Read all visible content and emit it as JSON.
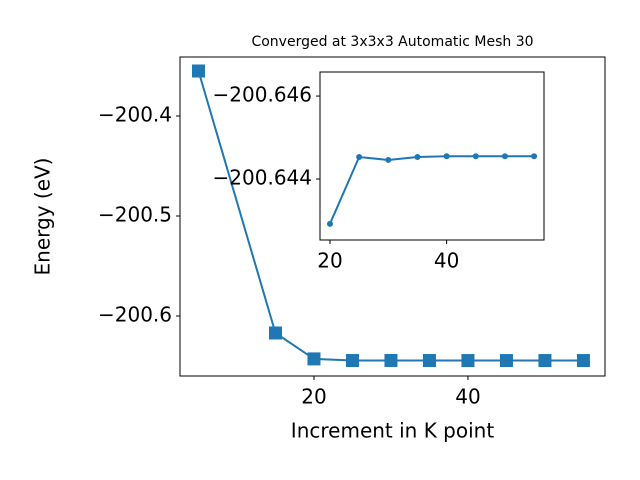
{
  "chart_data": [
    {
      "type": "line",
      "title": "Converged at 3x3x3 Automatic Mesh 30",
      "xlabel": "Increment in K point",
      "ylabel": "Energy (eV)",
      "x": [
        5,
        15,
        20,
        25,
        30,
        35,
        40,
        45,
        50,
        55
      ],
      "series": [
        {
          "color": "#1f77b4",
          "marker": "square",
          "values": [
            -200.355,
            -200.617,
            -200.6429,
            -200.64453,
            -200.64446,
            -200.64453,
            -200.64455,
            -200.64455,
            -200.64455,
            -200.64455
          ]
        }
      ],
      "xlim": [
        2.6,
        57.8
      ],
      "ylim": [
        -200.66,
        -200.341
      ],
      "xticks": [
        20,
        40
      ],
      "yticks": [
        {
          "value": -200.6,
          "label": "−200.6"
        },
        {
          "value": -200.5,
          "label": "−200.5"
        },
        {
          "value": -200.4,
          "label": "−200.4"
        }
      ]
    },
    {
      "type": "line",
      "x": [
        20,
        25,
        30,
        35,
        40,
        45,
        50,
        55
      ],
      "series": [
        {
          "color": "#1f77b4",
          "marker": "circle",
          "values": [
            -200.64292,
            -200.64453,
            -200.64446,
            -200.64453,
            -200.64455,
            -200.64455,
            -200.64455,
            -200.64455
          ]
        }
      ],
      "xlim": [
        18.29,
        56.7
      ],
      "ylim": [
        -200.64253,
        -200.64658
      ],
      "xticks": [
        20,
        40
      ],
      "yticks": [
        {
          "value": -200.644,
          "label": "−200.644"
        },
        {
          "value": -200.646,
          "label": "−200.646"
        }
      ]
    }
  ]
}
